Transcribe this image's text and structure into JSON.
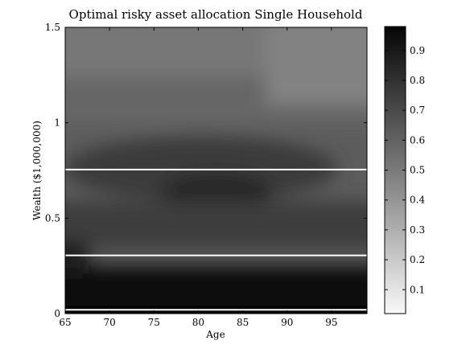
{
  "chart_data": {
    "type": "heatmap",
    "title": "Optimal risky asset allocation Single Household",
    "xlabel": "Age",
    "ylabel": "Wealth ($1,000,000)",
    "xlim": [
      65,
      99
    ],
    "ylim": [
      0,
      1.5
    ],
    "xticks": [
      "65",
      "70",
      "75",
      "80",
      "85",
      "90",
      "95"
    ],
    "yticks": [
      "0",
      "0.5",
      "1",
      "1.5"
    ],
    "colorbar": {
      "range": [
        0.02,
        0.98
      ],
      "ticks": [
        "0.1",
        "0.2",
        "0.3",
        "0.4",
        "0.5",
        "0.6",
        "0.7",
        "0.8",
        "0.9"
      ],
      "colormap": "gray-reversed"
    },
    "horizontal_lines": [
      {
        "wealth": 0.02,
        "color": "#ffffff"
      },
      {
        "wealth": 0.305,
        "color": "#ffffff"
      },
      {
        "wealth": 0.755,
        "color": "#ffffff"
      }
    ],
    "grid": false
  }
}
